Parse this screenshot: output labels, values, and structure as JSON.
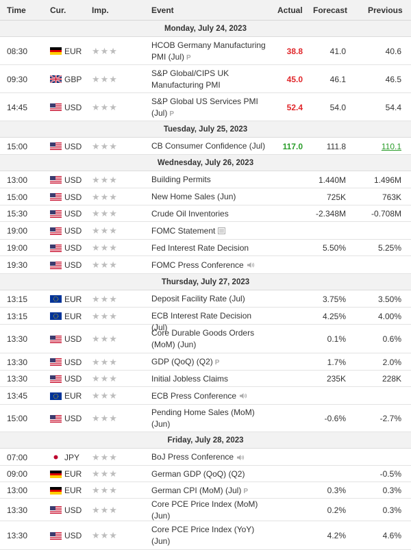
{
  "header": {
    "time": "Time",
    "cur": "Cur.",
    "imp": "Imp.",
    "event": "Event",
    "actual": "Actual",
    "forecast": "Forecast",
    "previous": "Previous"
  },
  "stars": "★★★",
  "prelim_tag": "P",
  "days": [
    {
      "label": "Monday, July 24, 2023",
      "events": [
        {
          "time": "08:30",
          "flag": "DE",
          "cur": "EUR",
          "event": "HCOB Germany Manufacturing PMI (Jul)",
          "icon": "P",
          "actual": "38.8",
          "actual_color": "red",
          "forecast": "41.0",
          "previous": "40.6"
        },
        {
          "time": "09:30",
          "flag": "GB",
          "cur": "GBP",
          "event": "S&P Global/CIPS UK Manufacturing PMI",
          "icon": "",
          "actual": "45.0",
          "actual_color": "red",
          "forecast": "46.1",
          "previous": "46.5"
        },
        {
          "time": "14:45",
          "flag": "US",
          "cur": "USD",
          "event": "S&P Global US Services PMI (Jul)",
          "icon": "P",
          "actual": "52.4",
          "actual_color": "red",
          "forecast": "54.0",
          "previous": "54.4"
        }
      ]
    },
    {
      "label": "Tuesday, July 25, 2023",
      "events": [
        {
          "time": "15:00",
          "flag": "US",
          "cur": "USD",
          "event": "CB Consumer Confidence (Jul)",
          "icon": "",
          "actual": "117.0",
          "actual_color": "green",
          "forecast": "111.8",
          "previous": "110.1",
          "previous_revised": true
        }
      ]
    },
    {
      "label": "Wednesday, July 26, 2023",
      "events": [
        {
          "time": "13:00",
          "flag": "US",
          "cur": "USD",
          "event": "Building Permits",
          "icon": "",
          "actual": "",
          "forecast": "1.440M",
          "previous": "1.496M"
        },
        {
          "time": "15:00",
          "flag": "US",
          "cur": "USD",
          "event": "New Home Sales (Jun)",
          "icon": "",
          "actual": "",
          "forecast": "725K",
          "previous": "763K"
        },
        {
          "time": "15:30",
          "flag": "US",
          "cur": "USD",
          "event": "Crude Oil Inventories",
          "icon": "",
          "actual": "",
          "forecast": "-2.348M",
          "previous": "-0.708M"
        },
        {
          "time": "19:00",
          "flag": "US",
          "cur": "USD",
          "event": "FOMC Statement",
          "icon": "doc",
          "actual": "",
          "forecast": "",
          "previous": ""
        },
        {
          "time": "19:00",
          "flag": "US",
          "cur": "USD",
          "event": "Fed Interest Rate Decision",
          "icon": "",
          "actual": "",
          "forecast": "5.50%",
          "previous": "5.25%"
        },
        {
          "time": "19:30",
          "flag": "US",
          "cur": "USD",
          "event": "FOMC Press Conference",
          "icon": "speaker",
          "actual": "",
          "forecast": "",
          "previous": ""
        }
      ]
    },
    {
      "label": "Thursday, July 27, 2023",
      "events": [
        {
          "time": "13:15",
          "flag": "EU",
          "cur": "EUR",
          "event": "Deposit Facility Rate (Jul)",
          "icon": "",
          "actual": "",
          "forecast": "3.75%",
          "previous": "3.50%"
        },
        {
          "time": "13:15",
          "flag": "EU",
          "cur": "EUR",
          "event": "ECB Interest Rate Decision (Jul)",
          "icon": "",
          "actual": "",
          "forecast": "4.25%",
          "previous": "4.00%"
        },
        {
          "time": "13:30",
          "flag": "US",
          "cur": "USD",
          "event": "Core Durable Goods Orders (MoM) (Jun)",
          "icon": "",
          "actual": "",
          "forecast": "0.1%",
          "previous": "0.6%"
        },
        {
          "time": "13:30",
          "flag": "US",
          "cur": "USD",
          "event": "GDP (QoQ) (Q2)",
          "icon": "P",
          "actual": "",
          "forecast": "1.7%",
          "previous": "2.0%"
        },
        {
          "time": "13:30",
          "flag": "US",
          "cur": "USD",
          "event": "Initial Jobless Claims",
          "icon": "",
          "actual": "",
          "forecast": "235K",
          "previous": "228K"
        },
        {
          "time": "13:45",
          "flag": "EU",
          "cur": "EUR",
          "event": "ECB Press Conference",
          "icon": "speaker",
          "actual": "",
          "forecast": "",
          "previous": ""
        },
        {
          "time": "15:00",
          "flag": "US",
          "cur": "USD",
          "event": "Pending Home Sales (MoM) (Jun)",
          "icon": "",
          "actual": "",
          "forecast": "-0.6%",
          "previous": "-2.7%"
        }
      ]
    },
    {
      "label": "Friday, July 28, 2023",
      "events": [
        {
          "time": "07:00",
          "flag": "JP",
          "cur": "JPY",
          "event": "BoJ Press Conference",
          "icon": "speaker",
          "actual": "",
          "forecast": "",
          "previous": ""
        },
        {
          "time": "09:00",
          "flag": "DE",
          "cur": "EUR",
          "event": "German GDP (QoQ) (Q2)",
          "icon": "",
          "actual": "",
          "forecast": "",
          "previous": "-0.5%"
        },
        {
          "time": "13:00",
          "flag": "DE",
          "cur": "EUR",
          "event": "German CPI (MoM) (Jul)",
          "icon": "P",
          "actual": "",
          "forecast": "0.3%",
          "previous": "0.3%"
        },
        {
          "time": "13:30",
          "flag": "US",
          "cur": "USD",
          "event": "Core PCE Price Index (MoM) (Jun)",
          "icon": "",
          "actual": "",
          "forecast": "0.2%",
          "previous": "0.3%"
        },
        {
          "time": "13:30",
          "flag": "US",
          "cur": "USD",
          "event": "Core PCE Price Index (YoY) (Jun)",
          "icon": "",
          "actual": "",
          "forecast": "4.2%",
          "previous": "4.6%"
        }
      ]
    }
  ]
}
